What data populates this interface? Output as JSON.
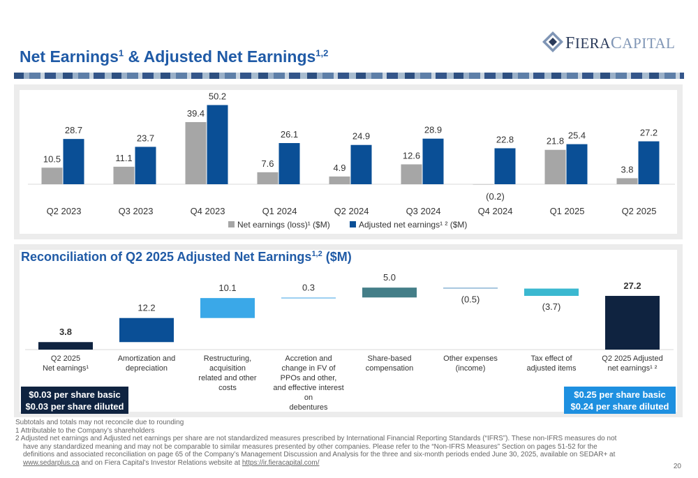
{
  "page": {
    "title": "Net Earnings",
    "title_sup1": "1",
    "title_mid": " & Adjusted Net Earnings",
    "title_sup2": "1,2",
    "page_number": "20"
  },
  "logo": {
    "first": "F",
    "first_rest": "IERA",
    "second": "C",
    "second_rest": "APITAL",
    "colors": [
      "#7f95b5",
      "#2a3a5a"
    ]
  },
  "colors": {
    "title": "#1f5aa6",
    "gray": "#a6a6a6",
    "blue": "#0a4f96",
    "navy": "#0f2340",
    "waterfall": [
      "#0f2340",
      "#0a4f96",
      "#3aa8e8",
      "#7cc0ec",
      "#447e88",
      "#8ab4d4",
      "#3bb8d0",
      "#0f2340"
    ],
    "box_right": "#1e90e0"
  },
  "chart_data": [
    {
      "type": "bar",
      "categories": [
        "Q2 2023",
        "Q3 2023",
        "Q4 2023",
        "Q1 2024",
        "Q2 2024",
        "Q3 2024",
        "Q4 2024",
        "Q1 2025",
        "Q2 2025"
      ],
      "series": [
        {
          "name": "Net earnings (loss)¹ ($M)",
          "values": [
            10.5,
            11.1,
            39.4,
            7.6,
            4.9,
            12.6,
            -0.2,
            21.8,
            3.8
          ],
          "labels": [
            "10.5",
            "11.1",
            "39.4",
            "7.6",
            "4.9",
            "12.6",
            "(0.2)",
            "21.8",
            "3.8"
          ],
          "color": "#a6a6a6"
        },
        {
          "name": "Adjusted net earnings¹ ² ($M)",
          "values": [
            28.7,
            23.7,
            50.2,
            26.1,
            24.9,
            28.9,
            22.8,
            25.4,
            27.2
          ],
          "labels": [
            "28.7",
            "23.7",
            "50.2",
            "26.1",
            "24.9",
            "28.9",
            "22.8",
            "25.4",
            "27.2"
          ],
          "color": "#0a4f96"
        }
      ],
      "legend": "bottom",
      "grid": false
    },
    {
      "type": "bar",
      "subtype": "waterfall",
      "title": "Reconciliation of Q2 2025 Adjusted Net Earnings",
      "title_sup": "1,2",
      "title_suffix": " ($M)",
      "categories": [
        [
          "Q2 2025",
          "Net earnings¹"
        ],
        [
          "Amortization and",
          "depreciation"
        ],
        [
          "Restructuring,",
          "acquisition",
          "related and other",
          "costs"
        ],
        [
          "Accretion and",
          "change in FV of",
          "PPOs and other,",
          "and effective interest",
          "on",
          "debentures"
        ],
        [
          "Share-based",
          "compensation"
        ],
        [
          "Other expenses",
          "(income)"
        ],
        [
          "Tax effect of",
          "adjusted items"
        ],
        [
          "Q2 2025 Adjusted",
          "net earnings¹ ²"
        ]
      ],
      "values": [
        3.8,
        12.2,
        10.1,
        0.3,
        5.0,
        -0.5,
        -3.7,
        27.2
      ],
      "labels": [
        "3.8",
        "12.2",
        "10.1",
        "0.3",
        "5.0",
        "(0.5)",
        "(3.7)",
        "27.2"
      ],
      "totals": [
        true,
        false,
        false,
        false,
        false,
        false,
        false,
        true
      ]
    }
  ],
  "boxes": {
    "left": [
      "$0.03 per share basic",
      "$0.03 per share diluted"
    ],
    "right": [
      "$0.25 per share basic",
      "$0.24 per share diluted"
    ]
  },
  "footnotes": {
    "line1": "Subtotals and totals may not reconcile due to rounding",
    "line2": "1 Attributable to the Company’s shareholders",
    "line3": "2 Adjusted net earnings and Adjusted net earnings per share are not standardized measures prescribed by International Financial Reporting Standards (“IFRS”). These non-IFRS measures do not",
    "line4": "have any standardized meaning and may not be comparable to similar measures presented by other companies. Please refer to the “Non-IFRS Measures” Section on pages 51-52 for the",
    "line5": "definitions and associated reconciliation on page 65 of the Company’s Management Discussion and Analysis for the three and six-month periods ended June 30, 2025, available on SEDAR+ at",
    "link1": "www.sedarplus.ca",
    "mid": " and on Fiera Capital’s Investor Relations website at ",
    "link2": "https://ir.fieracapital.com/"
  }
}
